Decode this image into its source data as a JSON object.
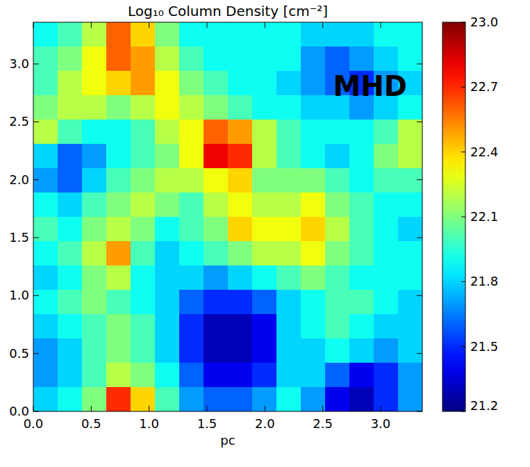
{
  "chart_data": {
    "type": "heatmap",
    "title": "Log₁₀ Column Density [cm⁻²]",
    "annotation": "MHD",
    "x_label": "pc",
    "xlim": [
      0,
      3.36
    ],
    "ylim": [
      0,
      3.36
    ],
    "xticks": [
      {
        "value": 0,
        "label": "0.0"
      },
      0.5,
      {
        "value": 1,
        "label": "1.0"
      },
      1.5,
      {
        "value": 2,
        "label": "2.0"
      },
      2.5,
      {
        "value": 3,
        "label": "3.0"
      }
    ],
    "yticks": [
      {
        "value": 0,
        "label": "0.0"
      },
      0.5,
      {
        "value": 1,
        "label": "1.0"
      },
      1.5,
      {
        "value": 2,
        "label": "2.0"
      },
      2.5,
      {
        "value": 3,
        "label": "3.0"
      }
    ],
    "x": [
      0.105,
      0.315,
      0.525,
      0.735,
      0.945,
      1.155,
      1.365,
      1.575,
      1.785,
      1.995,
      2.205,
      2.415,
      2.625,
      2.835,
      3.045,
      3.255
    ],
    "y": [
      3.255,
      3.045,
      2.835,
      2.625,
      2.415,
      2.205,
      1.995,
      1.785,
      1.575,
      1.365,
      1.155,
      0.945,
      0.735,
      0.525,
      0.315,
      0.105
    ],
    "cells": [
      [
        21.9,
        22.0,
        22.2,
        22.6,
        22.4,
        22.1,
        21.9,
        21.9,
        21.9,
        21.9,
        21.9,
        21.8,
        21.8,
        21.8,
        21.9,
        21.9
      ],
      [
        22.0,
        22.1,
        22.3,
        22.6,
        22.5,
        22.2,
        22.0,
        21.9,
        21.9,
        21.9,
        21.9,
        21.7,
        21.6,
        21.7,
        21.8,
        21.9
      ],
      [
        22.0,
        22.2,
        22.3,
        22.4,
        22.5,
        22.3,
        22.1,
        22.0,
        21.9,
        21.9,
        21.8,
        21.7,
        21.6,
        21.5,
        21.7,
        21.8
      ],
      [
        22.1,
        22.2,
        22.2,
        22.1,
        22.2,
        22.3,
        22.2,
        22.1,
        22.0,
        21.9,
        21.9,
        21.8,
        21.8,
        21.7,
        21.8,
        21.9
      ],
      [
        22.2,
        22.0,
        21.9,
        21.9,
        22.0,
        22.2,
        22.3,
        22.6,
        22.5,
        22.2,
        22.0,
        21.9,
        21.9,
        21.9,
        22.0,
        22.2
      ],
      [
        21.8,
        21.6,
        21.7,
        21.9,
        22.0,
        22.1,
        22.3,
        22.8,
        22.7,
        22.2,
        22.0,
        21.9,
        21.8,
        21.9,
        22.1,
        22.2
      ],
      [
        21.7,
        21.6,
        21.8,
        22.0,
        22.1,
        22.2,
        22.2,
        22.3,
        22.4,
        22.1,
        22.1,
        22.1,
        22.0,
        21.9,
        22.0,
        22.0
      ],
      [
        21.9,
        21.8,
        22.0,
        22.1,
        22.2,
        22.1,
        22.0,
        22.2,
        22.3,
        22.2,
        22.2,
        22.3,
        22.1,
        22.0,
        21.9,
        21.9
      ],
      [
        22.0,
        21.9,
        22.1,
        22.2,
        22.1,
        21.9,
        22.0,
        22.1,
        22.4,
        22.3,
        22.3,
        22.4,
        22.2,
        22.0,
        21.9,
        21.8
      ],
      [
        21.9,
        22.0,
        22.2,
        22.5,
        22.0,
        21.8,
        21.9,
        22.0,
        22.1,
        22.2,
        22.2,
        22.3,
        22.1,
        22.0,
        21.9,
        21.9
      ],
      [
        21.8,
        21.9,
        22.1,
        22.2,
        21.9,
        21.8,
        21.8,
        21.7,
        21.8,
        21.9,
        22.0,
        22.1,
        22.0,
        21.9,
        21.9,
        21.9
      ],
      [
        21.9,
        22.0,
        22.1,
        22.0,
        21.9,
        21.8,
        21.6,
        21.5,
        21.5,
        21.6,
        21.8,
        21.9,
        22.0,
        22.0,
        21.9,
        21.8
      ],
      [
        21.8,
        21.9,
        22.0,
        22.1,
        22.0,
        21.8,
        21.5,
        21.3,
        21.3,
        21.4,
        21.8,
        21.9,
        22.0,
        21.9,
        21.8,
        21.8
      ],
      [
        21.7,
        21.8,
        22.0,
        22.1,
        22.0,
        21.8,
        21.5,
        21.3,
        21.3,
        21.4,
        21.8,
        21.8,
        21.9,
        21.8,
        21.7,
        21.8
      ],
      [
        21.7,
        21.8,
        22.0,
        22.2,
        22.1,
        21.9,
        21.6,
        21.4,
        21.4,
        21.5,
        21.8,
        21.8,
        21.6,
        21.4,
        21.5,
        21.7
      ],
      [
        21.8,
        21.9,
        22.1,
        22.7,
        22.4,
        22.0,
        21.7,
        21.6,
        21.6,
        21.7,
        21.9,
        21.7,
        21.4,
        21.3,
        21.5,
        21.7
      ]
    ],
    "colorbar": {
      "range": [
        21.2,
        {
          "value": 23,
          "label": "23.0"
        }
      ],
      "ticks": [
        21.2,
        21.5,
        21.8,
        22.1,
        22.4,
        22.7,
        {
          "value": 23,
          "label": "23.0"
        }
      ]
    }
  }
}
